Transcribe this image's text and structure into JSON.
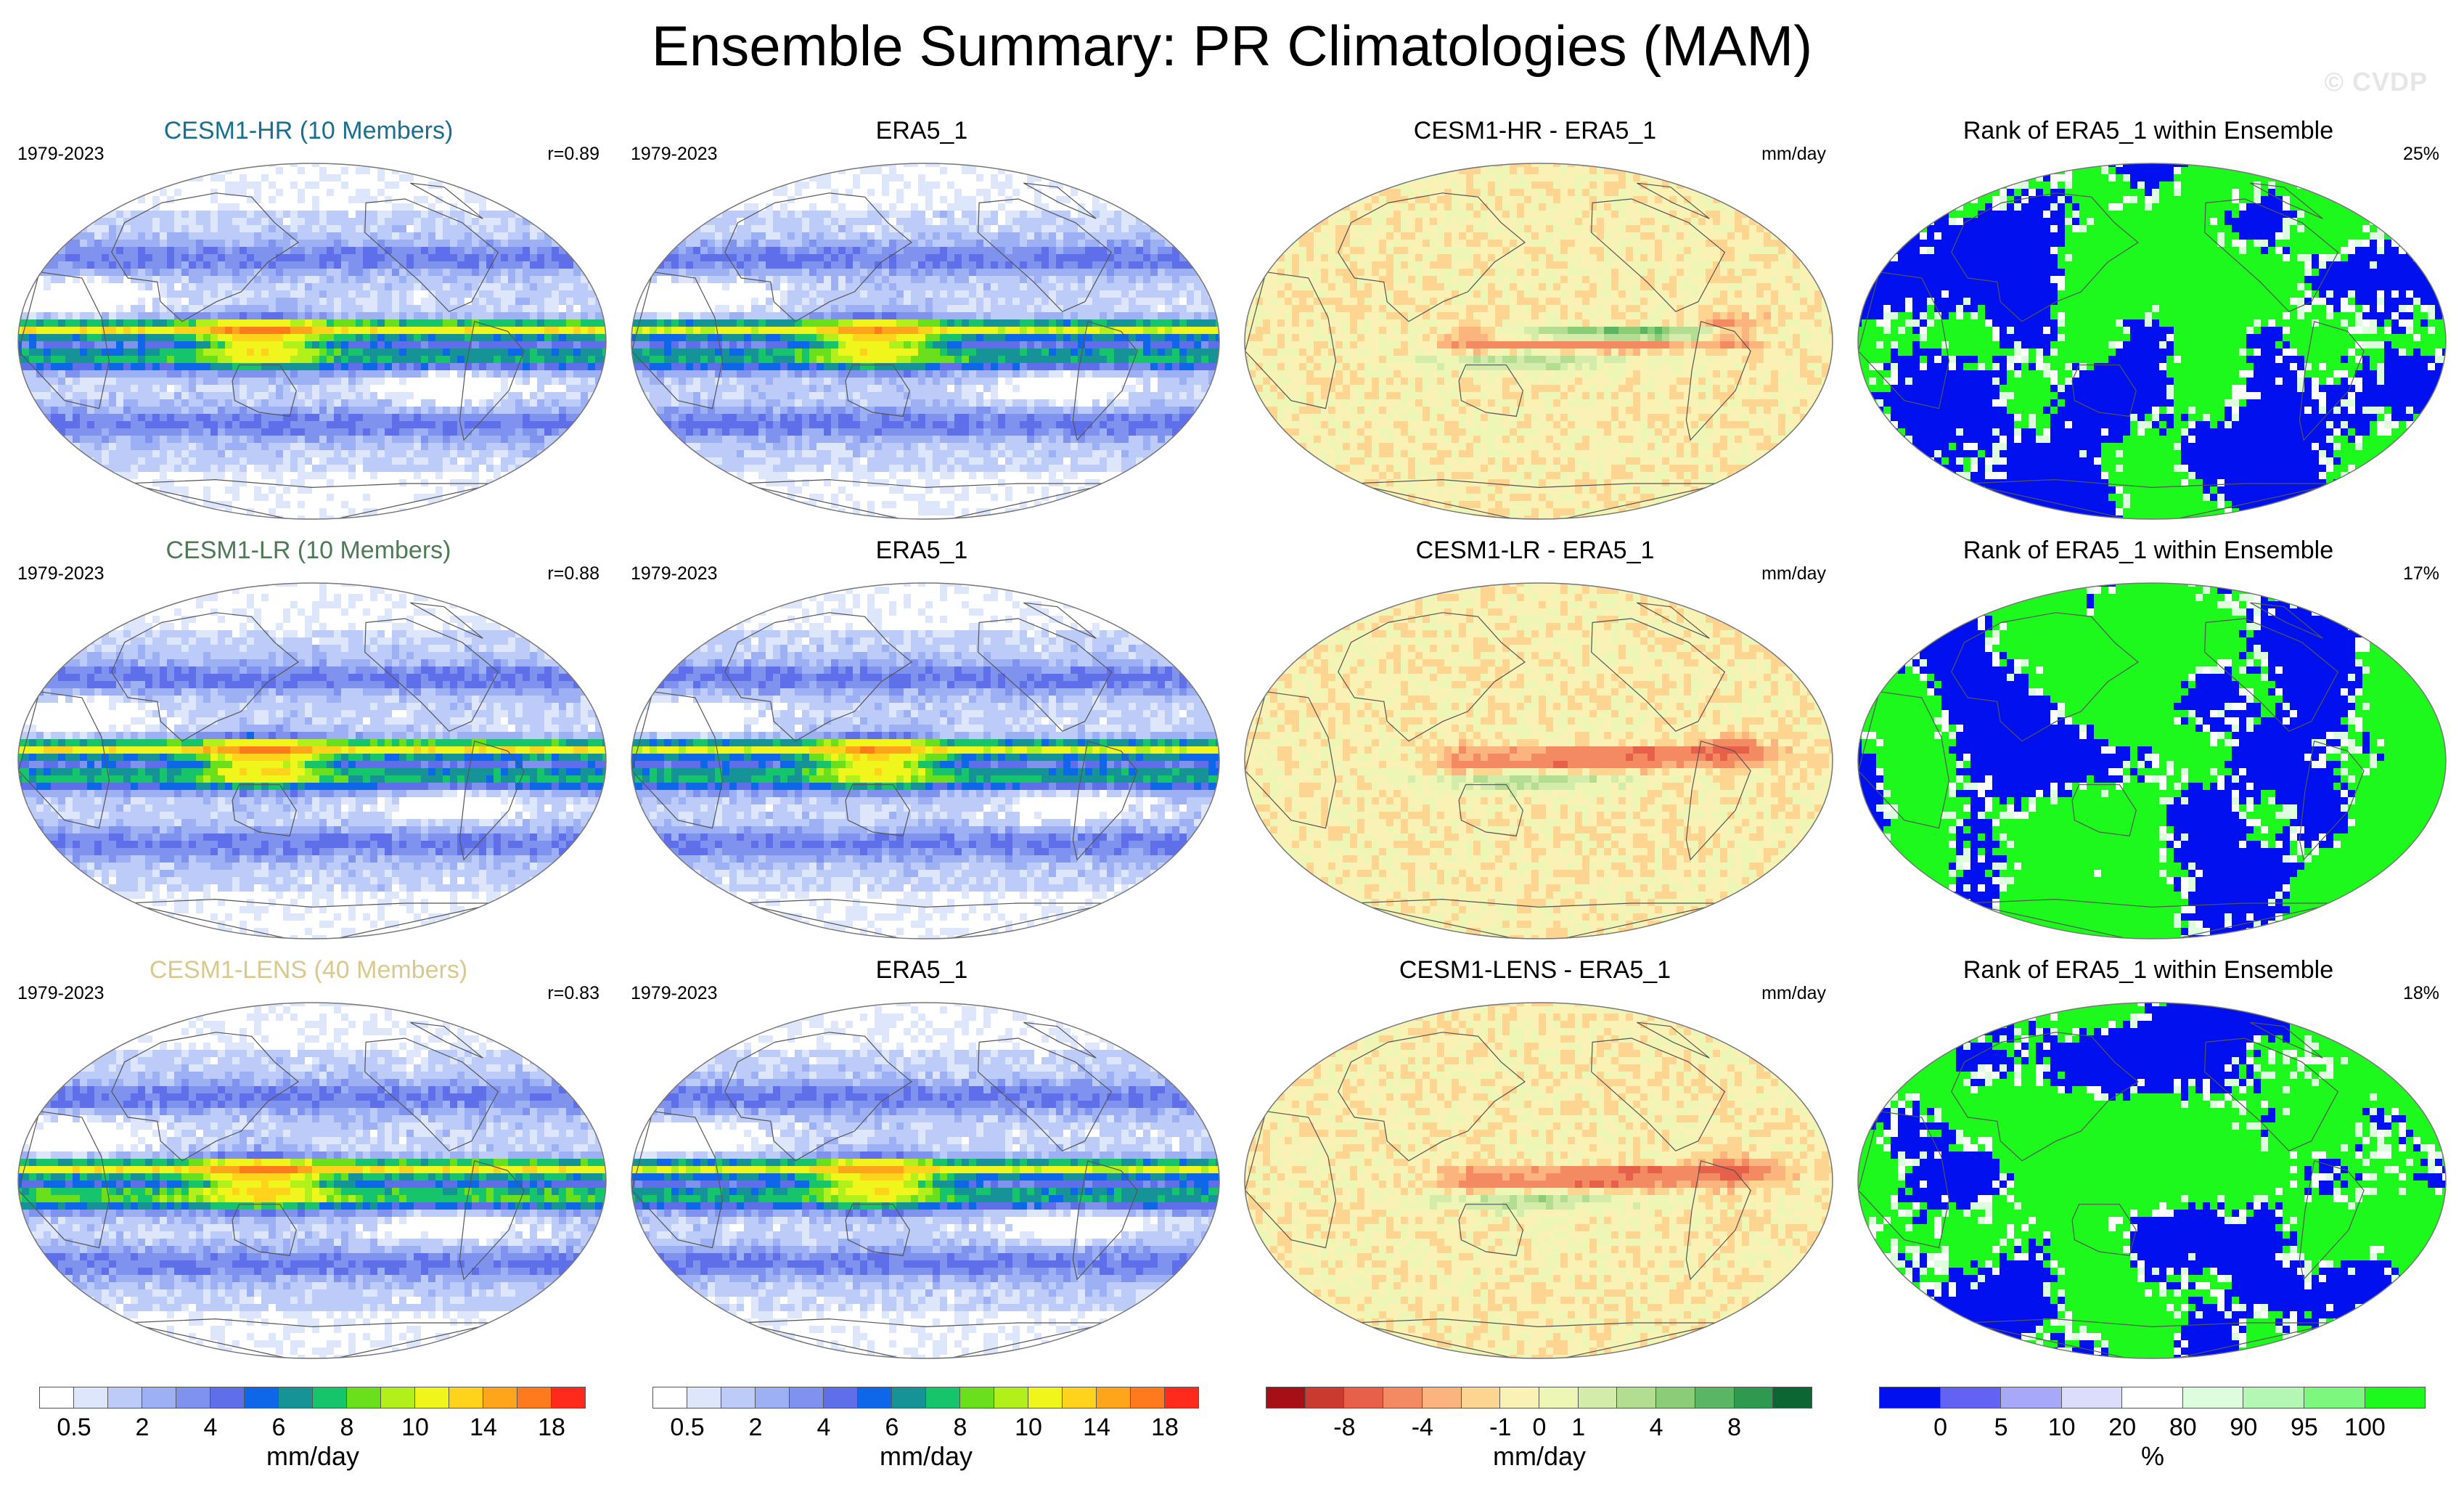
{
  "page": {
    "title": "Ensemble Summary: PR Climatologies (MAM)",
    "watermark": "© CVDP"
  },
  "chart_data": [
    {
      "type": "heatmap",
      "title": "CESM1-HR (10 Members)",
      "title_color": "#1a6f8f",
      "subtitle_left": "1979-2023",
      "subtitle_right": "r=0.89",
      "field": "PR climatology",
      "variant": "ens_hr",
      "units": "mm/day"
    },
    {
      "type": "heatmap",
      "title": "ERA5_1",
      "title_color": "#000000",
      "subtitle_left": "1979-2023",
      "subtitle_right": "",
      "field": "PR climatology",
      "variant": "obs",
      "units": "mm/day"
    },
    {
      "type": "heatmap",
      "title": "CESM1-HR - ERA5_1",
      "title_color": "#000000",
      "subtitle_left": "",
      "subtitle_right": "mm/day",
      "field": "PR difference",
      "variant": "diff_hr",
      "units": "mm/day"
    },
    {
      "type": "heatmap",
      "title": "Rank of ERA5_1 within Ensemble",
      "title_color": "#000000",
      "subtitle_left": "",
      "subtitle_right": "25%",
      "field": "rank",
      "variant": "rank_hr",
      "units": "%"
    },
    {
      "type": "heatmap",
      "title": "CESM1-LR (10 Members)",
      "title_color": "#4f7a58",
      "subtitle_left": "1979-2023",
      "subtitle_right": "r=0.88",
      "field": "PR climatology",
      "variant": "ens_lr",
      "units": "mm/day"
    },
    {
      "type": "heatmap",
      "title": "ERA5_1",
      "title_color": "#000000",
      "subtitle_left": "1979-2023",
      "subtitle_right": "",
      "field": "PR climatology",
      "variant": "obs",
      "units": "mm/day"
    },
    {
      "type": "heatmap",
      "title": "CESM1-LR - ERA5_1",
      "title_color": "#000000",
      "subtitle_left": "",
      "subtitle_right": "mm/day",
      "field": "PR difference",
      "variant": "diff_lr",
      "units": "mm/day"
    },
    {
      "type": "heatmap",
      "title": "Rank of ERA5_1 within Ensemble",
      "title_color": "#000000",
      "subtitle_left": "",
      "subtitle_right": "17%",
      "field": "rank",
      "variant": "rank_lr",
      "units": "%"
    },
    {
      "type": "heatmap",
      "title": "CESM1-LENS (40 Members)",
      "title_color": "#d9c98c",
      "subtitle_left": "1979-2023",
      "subtitle_right": "r=0.83",
      "field": "PR climatology",
      "variant": "ens_lens",
      "units": "mm/day"
    },
    {
      "type": "heatmap",
      "title": "ERA5_1",
      "title_color": "#000000",
      "subtitle_left": "1979-2023",
      "subtitle_right": "",
      "field": "PR climatology",
      "variant": "obs",
      "units": "mm/day"
    },
    {
      "type": "heatmap",
      "title": "CESM1-LENS - ERA5_1",
      "title_color": "#000000",
      "subtitle_left": "",
      "subtitle_right": "mm/day",
      "field": "PR difference",
      "variant": "diff_lens",
      "units": "mm/day"
    },
    {
      "type": "heatmap",
      "title": "Rank of ERA5_1 within Ensemble",
      "title_color": "#000000",
      "subtitle_left": "",
      "subtitle_right": "18%",
      "field": "rank",
      "variant": "rank_lens",
      "units": "%"
    }
  ],
  "colorbars": [
    {
      "name": "pr-colorbar-1",
      "colors": [
        "#ffffff",
        "#dde6fb",
        "#bccbf7",
        "#9cb0f3",
        "#7f93ee",
        "#5f6fea",
        "#0d67e8",
        "#169396",
        "#16c46b",
        "#6ae01c",
        "#b2f01c",
        "#f0f51c",
        "#ffd21c",
        "#ffa51c",
        "#ff7a1c",
        "#ff2a1c"
      ],
      "ticks": [
        "0.5",
        "2",
        "4",
        "6",
        "8",
        "10",
        "14",
        "18"
      ],
      "unit": "mm/day"
    },
    {
      "name": "pr-colorbar-2",
      "colors": [
        "#ffffff",
        "#dde6fb",
        "#bccbf7",
        "#9cb0f3",
        "#7f93ee",
        "#5f6fea",
        "#0d67e8",
        "#169396",
        "#16c46b",
        "#6ae01c",
        "#b2f01c",
        "#f0f51c",
        "#ffd21c",
        "#ffa51c",
        "#ff7a1c",
        "#ff2a1c"
      ],
      "ticks": [
        "0.5",
        "2",
        "4",
        "6",
        "8",
        "10",
        "14",
        "18"
      ],
      "unit": "mm/day"
    },
    {
      "name": "diff-colorbar",
      "colors": [
        "#a50f15",
        "#cb3a2e",
        "#e6604a",
        "#f48a62",
        "#fbb47e",
        "#fdd591",
        "#faf1b4",
        "#eef6b6",
        "#d3ecaa",
        "#b3de92",
        "#8bcc77",
        "#5ab663",
        "#2d9a4f",
        "#0b6633"
      ],
      "ticks": [
        "-8",
        "-4",
        "-1",
        "0",
        "1",
        "4",
        "8"
      ],
      "unit": "mm/day"
    },
    {
      "name": "rank-colorbar",
      "colors": [
        "#0010ef",
        "#6262f5",
        "#a8a8f8",
        "#dcdcfb",
        "#ffffff",
        "#defcde",
        "#b3f7b3",
        "#7ef77e",
        "#1df91d"
      ],
      "ticks": [
        "0",
        "5",
        "10",
        "20",
        "80",
        "90",
        "95",
        "100"
      ],
      "unit": "%"
    }
  ]
}
